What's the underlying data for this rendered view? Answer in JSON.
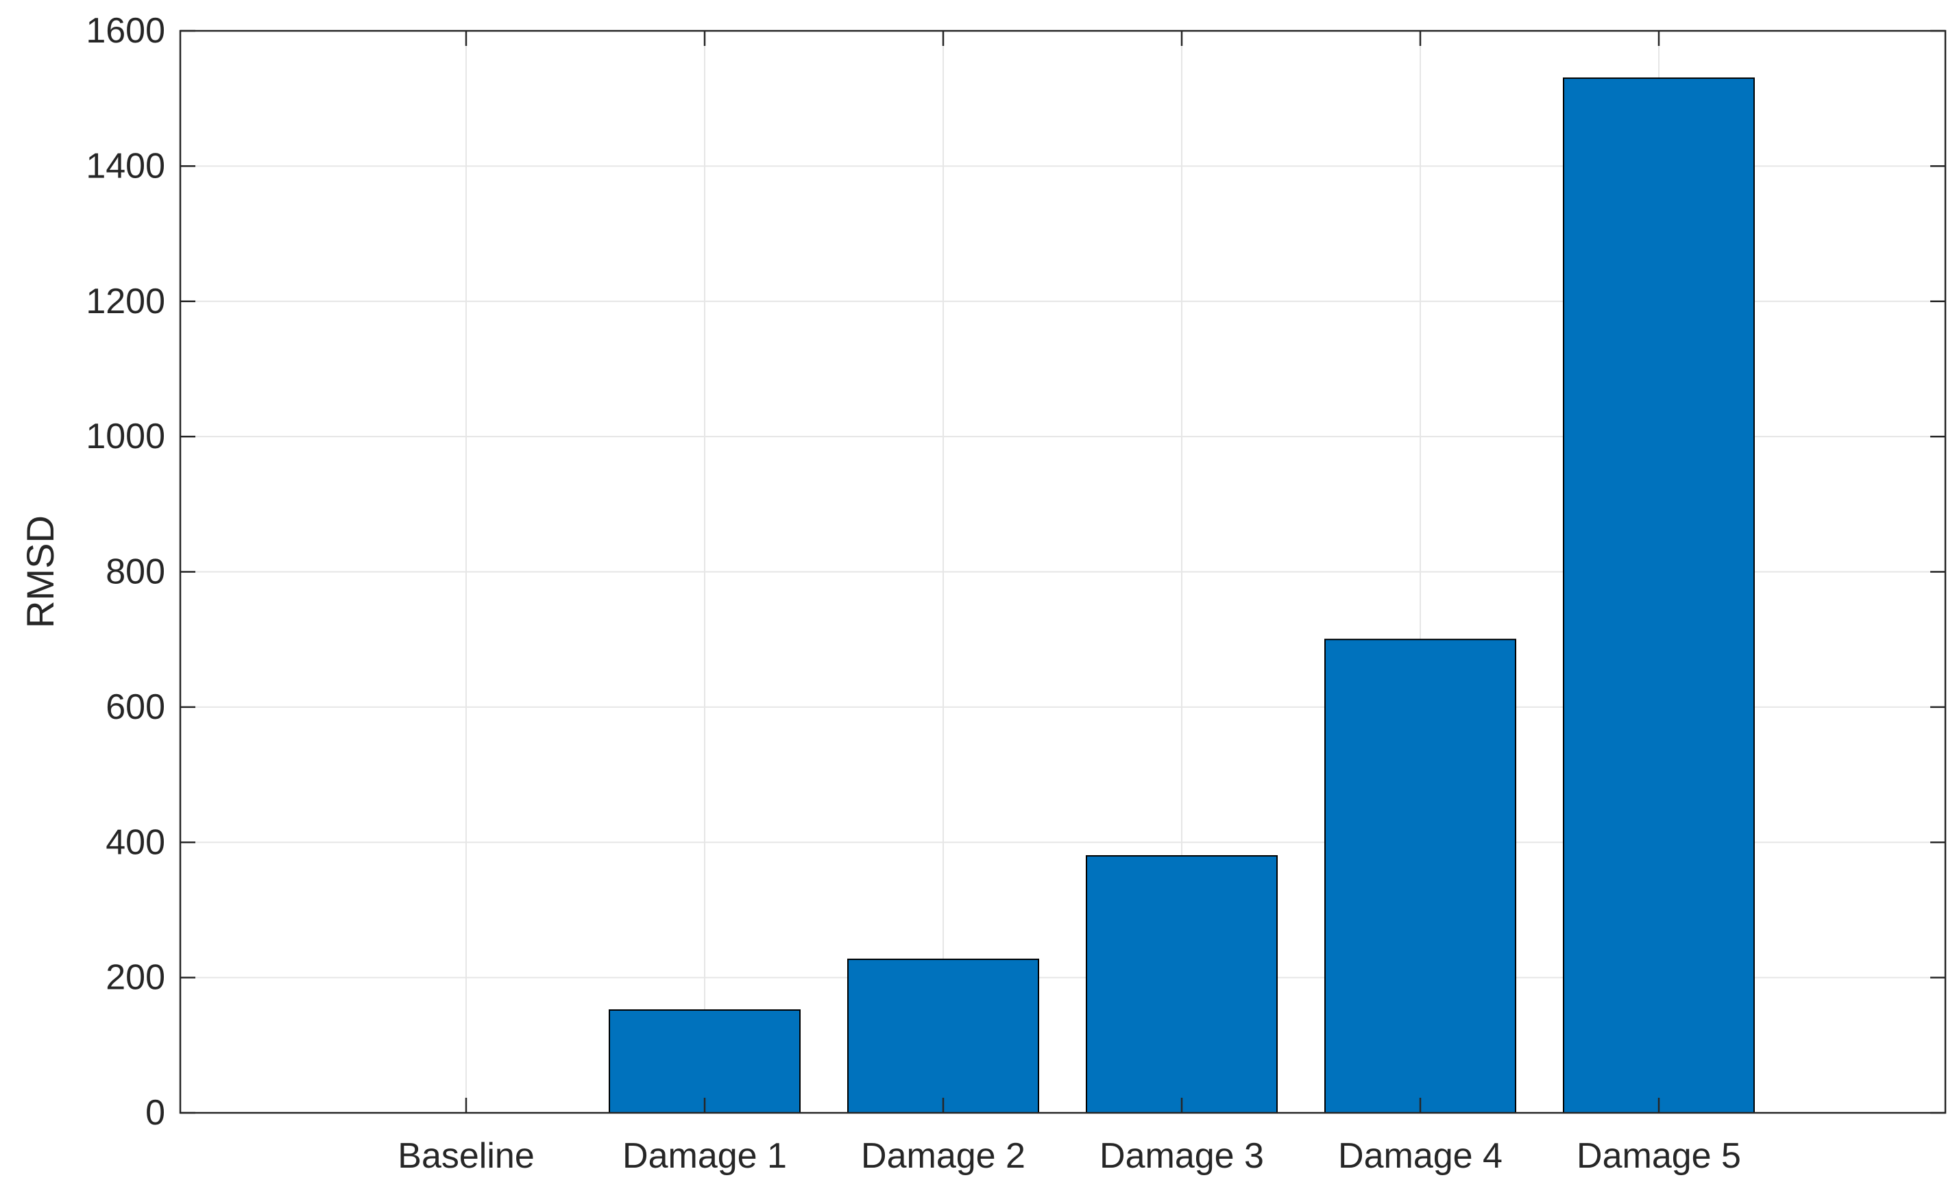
{
  "chart_data": {
    "type": "bar",
    "title": "",
    "xlabel": "",
    "ylabel": "RMSD",
    "categories": [
      "Baseline",
      "Damage 1",
      "Damage 2",
      "Damage 3",
      "Damage 4",
      "Damage 5"
    ],
    "values": [
      0,
      152,
      227,
      380,
      700,
      1530
    ],
    "ylim": [
      0,
      1600
    ],
    "yticks": [
      0,
      200,
      400,
      600,
      800,
      1000,
      1200,
      1400,
      1600
    ],
    "ytick_labels": [
      "0",
      "200",
      "400",
      "600",
      "800",
      "1000",
      "1200",
      "1400",
      "1600"
    ],
    "grid": true,
    "legend": "none",
    "colors": {
      "bar_fill": "#0072BD",
      "bar_edge": "#000000",
      "grid": "#e6e6e6",
      "axis": "#262626",
      "text": "#262626"
    }
  }
}
